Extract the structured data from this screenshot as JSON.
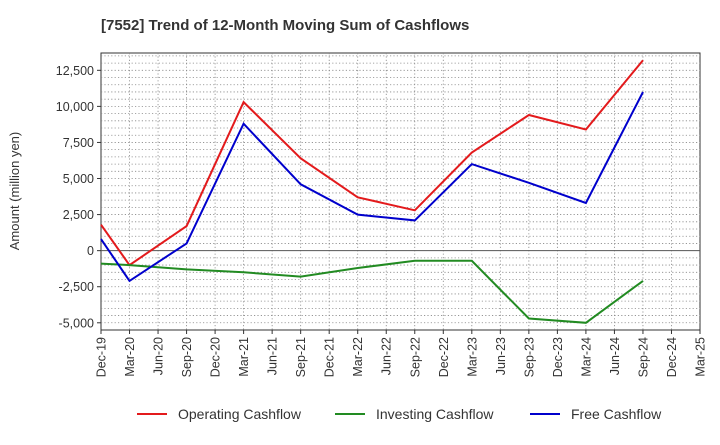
{
  "chart_data": {
    "type": "line",
    "title": "[7552]  Trend of 12-Month Moving Sum of Cashflows",
    "xlabel": "",
    "ylabel": "Amount (million yen)",
    "x": [
      "Dec-19",
      "Mar-20",
      "Jun-20",
      "Sep-20",
      "Dec-20",
      "Mar-21",
      "Jun-21",
      "Sep-21",
      "Dec-21",
      "Mar-22",
      "Jun-22",
      "Sep-22",
      "Dec-22",
      "Mar-23",
      "Jun-23",
      "Sep-23",
      "Dec-23",
      "Mar-24",
      "Jun-24",
      "Sep-24",
      "Dec-24",
      "Mar-25"
    ],
    "ylim": [
      -5500,
      13700
    ],
    "yticks": [
      12500,
      10000,
      7500,
      5000,
      2500,
      0,
      -2500,
      -5000
    ],
    "ytick_labels": [
      "12,500",
      "10,000",
      "7,500",
      "5,000",
      "2,500",
      "0",
      "-2,500",
      "-5,000"
    ],
    "grid": true,
    "legend_position": "bottom",
    "series": [
      {
        "name": "Operating Cashflow",
        "color": "#e31a1c",
        "values": [
          1800,
          -1000,
          null,
          1700,
          null,
          10300,
          null,
          6400,
          null,
          3700,
          null,
          2800,
          null,
          6800,
          null,
          9400,
          null,
          8400,
          null,
          13200,
          null,
          null
        ]
      },
      {
        "name": "Investing Cashflow",
        "color": "#228b22",
        "values": [
          -900,
          -1000,
          null,
          -1300,
          null,
          -1500,
          null,
          -1800,
          null,
          -1200,
          null,
          -700,
          null,
          -700,
          null,
          -4700,
          null,
          -5000,
          null,
          -2100,
          null,
          null
        ]
      },
      {
        "name": "Free Cashflow",
        "color": "#0000cc",
        "values": [
          800,
          -2100,
          null,
          500,
          null,
          8800,
          null,
          4600,
          null,
          2500,
          null,
          2100,
          null,
          6000,
          null,
          4700,
          null,
          3300,
          null,
          11000,
          null,
          null
        ]
      }
    ]
  }
}
